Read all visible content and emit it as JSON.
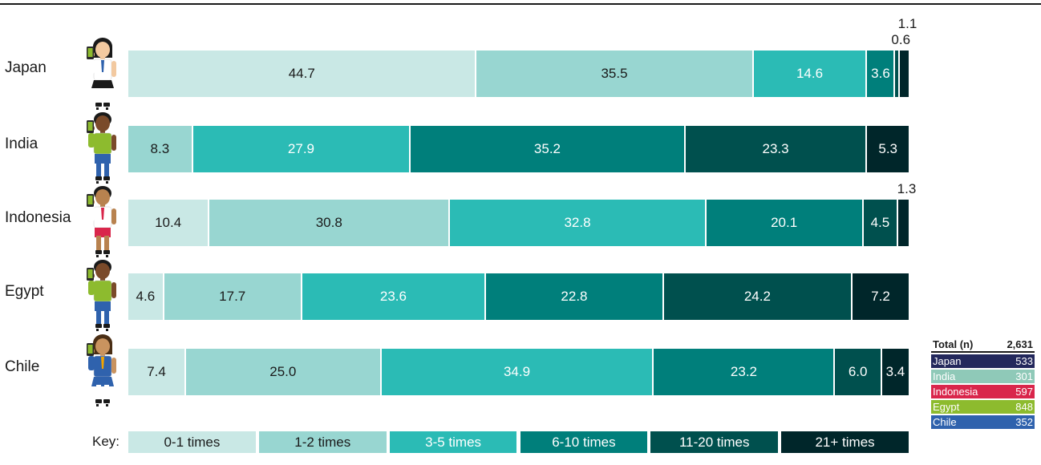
{
  "chart_data": {
    "type": "bar",
    "stacked": true,
    "orientation": "horizontal",
    "percent": true,
    "categories": [
      "Japan",
      "India",
      "Indonesia",
      "Egypt",
      "Chile"
    ],
    "series": [
      {
        "name": "0-1 times",
        "color": "#c9e8e5",
        "text_color": "#1a1a1a",
        "values": [
          44.7,
          0,
          10.4,
          4.6,
          7.4
        ]
      },
      {
        "name": "1-2 times",
        "color": "#98d6d1",
        "text_color": "#1a1a1a",
        "values": [
          35.5,
          8.3,
          30.8,
          17.7,
          25.0
        ]
      },
      {
        "name": "3-5 times",
        "color": "#2bbbb5",
        "text_color": "#ffffff",
        "values": [
          14.6,
          27.9,
          32.8,
          23.6,
          34.9
        ]
      },
      {
        "name": "6-10 times",
        "color": "#007f7b",
        "text_color": "#ffffff",
        "values": [
          3.6,
          35.2,
          20.1,
          22.8,
          23.2
        ]
      },
      {
        "name": "11-20 times",
        "color": "#00504e",
        "text_color": "#ffffff",
        "values": [
          0.6,
          23.3,
          4.5,
          24.2,
          6.0
        ]
      },
      {
        "name": "21+ times",
        "color": "#00262a",
        "text_color": "#ffffff",
        "values": [
          1.1,
          5.3,
          1.3,
          7.2,
          3.4
        ]
      }
    ],
    "labels_display": [
      [
        "44.7",
        "35.5",
        "14.6",
        "3.6",
        "0.6",
        "1.1"
      ],
      [
        "",
        "8.3",
        "27.9",
        "35.2",
        "23.3",
        "5.3"
      ],
      [
        "10.4",
        "30.8",
        "32.8",
        "20.1",
        "4.5",
        "1.3"
      ],
      [
        "4.6",
        "17.7",
        "23.6",
        "22.8",
        "24.2",
        "7.2"
      ],
      [
        "7.4",
        "25.0",
        "34.9",
        "23.2",
        "6.0",
        "3.4"
      ]
    ],
    "key_label": "Key:",
    "legend": {
      "placement": "bottom"
    },
    "grid": false
  },
  "totals": {
    "header_label": "Total (n)",
    "header_value": "2,631",
    "rows": [
      {
        "label": "Japan",
        "value": "533",
        "color": "#23285c"
      },
      {
        "label": "India",
        "value": "301",
        "color": "#8fc9b8"
      },
      {
        "label": "Indonesia",
        "value": "597",
        "color": "#d9264b"
      },
      {
        "label": "Egypt",
        "value": "848",
        "color": "#8dbb2e"
      },
      {
        "label": "Chile",
        "value": "352",
        "color": "#2f62ad"
      }
    ]
  },
  "figures": [
    {
      "country": "Japan",
      "icon": "schoolgirl-phone-icon",
      "skin": "#f2c9a0",
      "hair": "#1a1a1a",
      "top": "#ffffff",
      "bottom": "#1a1a1a",
      "accent": "#2f62ad"
    },
    {
      "country": "India",
      "icon": "boy-phone-icon",
      "skin": "#7a4a2a",
      "hair": "#1a1a1a",
      "top": "#8dbb2e",
      "bottom": "#2f62ad",
      "accent": "#8dbb2e"
    },
    {
      "country": "Indonesia",
      "icon": "schoolboy-phone-icon",
      "skin": "#b8824f",
      "hair": "#1a1a1a",
      "top": "#ffffff",
      "bottom": "#d9264b",
      "accent": "#d9264b"
    },
    {
      "country": "Egypt",
      "icon": "boy-phone-icon",
      "skin": "#7a4a2a",
      "hair": "#1a1a1a",
      "top": "#8dbb2e",
      "bottom": "#2f62ad",
      "accent": "#8dbb2e"
    },
    {
      "country": "Chile",
      "icon": "schoolgirl-phone-icon",
      "skin": "#c9935f",
      "hair": "#4a2e15",
      "top": "#2f62ad",
      "bottom": "#2f62ad",
      "accent": "#f2a400"
    }
  ]
}
